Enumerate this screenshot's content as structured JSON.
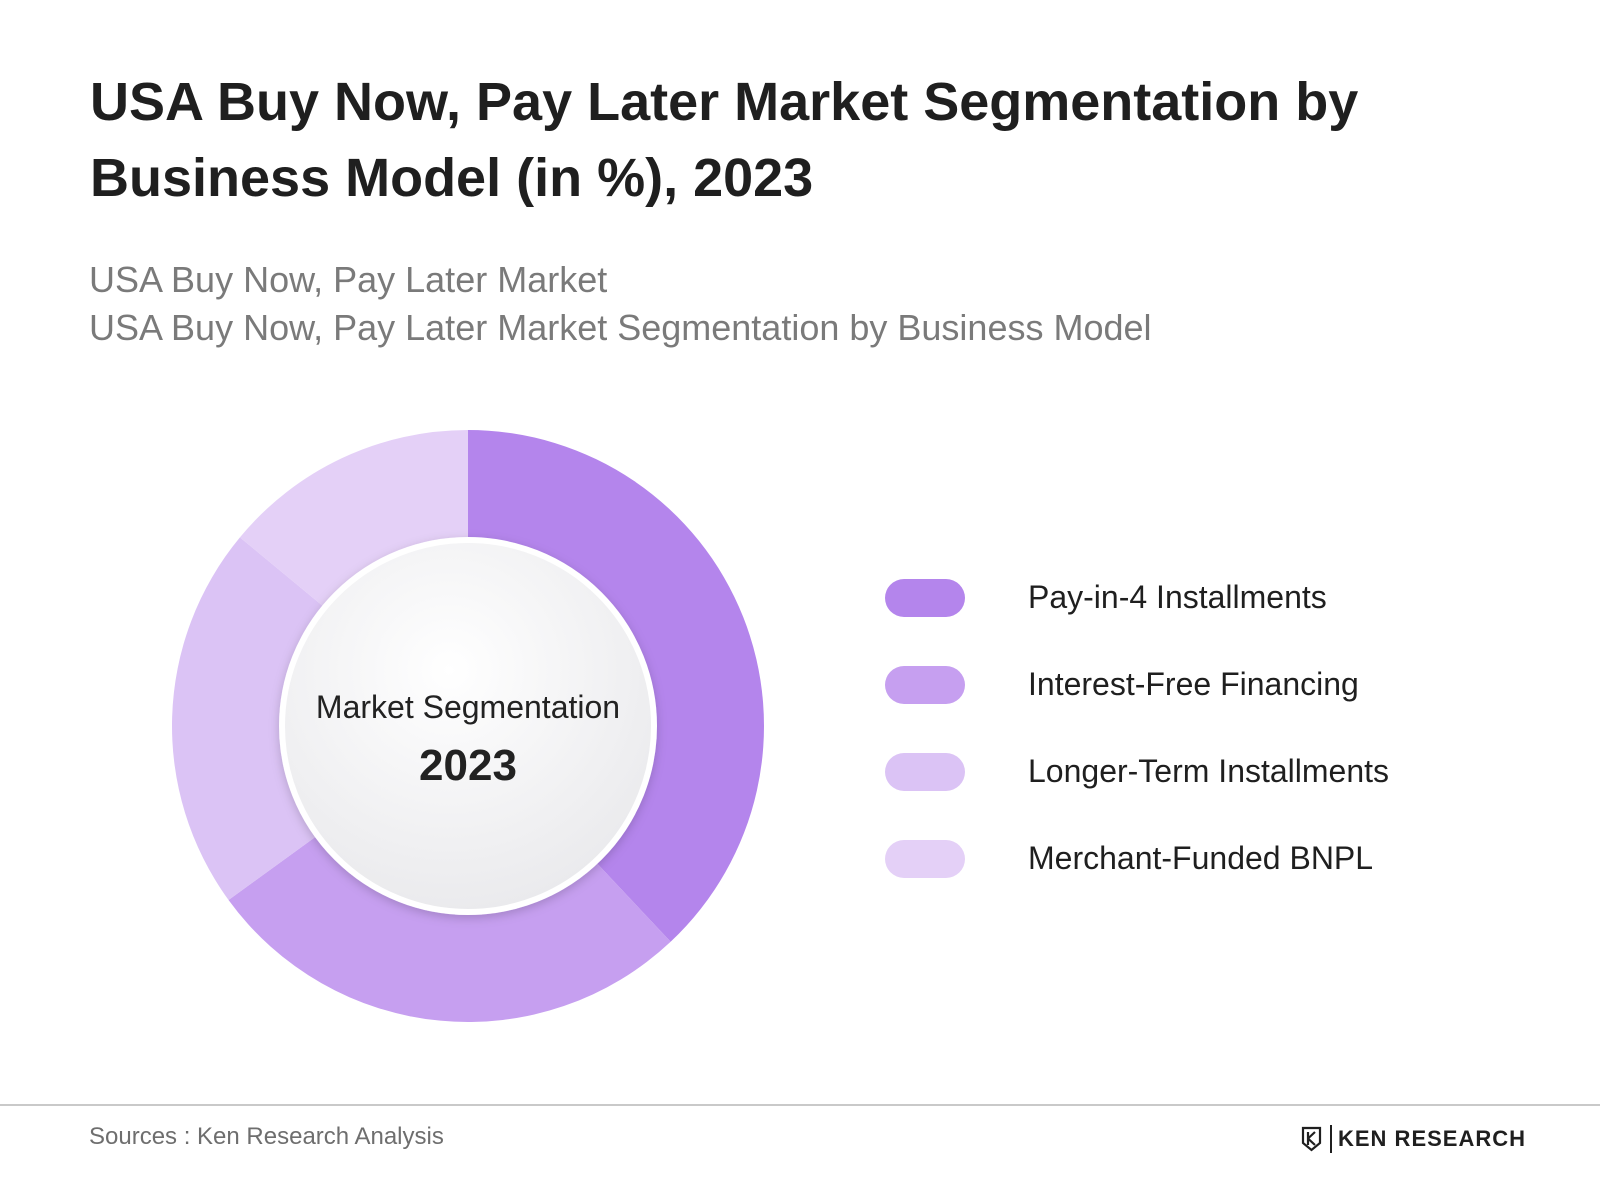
{
  "title": "USA Buy Now, Pay Later Market Segmentation by Business Model (in %), 2023",
  "subtitle_line1": "USA Buy Now, Pay Later Market",
  "subtitle_line2": "USA Buy Now, Pay Later Market Segmentation by Business Model",
  "center_label": "Market Segmentation",
  "center_year": "2023",
  "chart_data": {
    "type": "pie",
    "variant": "donut",
    "categories": [
      "Pay-in-4 Installments",
      "Interest-Free Financing",
      "Longer-Term Installments",
      "Merchant-Funded BNPL"
    ],
    "values": [
      38,
      27,
      21,
      14
    ],
    "colors": [
      "#b485ec",
      "#c69ff0",
      "#dbc3f5",
      "#e4d0f7"
    ],
    "legend_position": "right"
  },
  "legend": {
    "items": [
      {
        "label": "Pay-in-4 Installments",
        "color": "#b485ec"
      },
      {
        "label": "Interest-Free Financing",
        "color": "#c69ff0"
      },
      {
        "label": "Longer-Term Installments",
        "color": "#dbc3f5"
      },
      {
        "label": "Merchant-Funded BNPL",
        "color": "#e4d0f7"
      }
    ]
  },
  "footer": {
    "sources": "Sources : Ken Research Analysis",
    "brand": "KEN RESEARCH",
    "brand_icon": "ken-research-logo"
  }
}
